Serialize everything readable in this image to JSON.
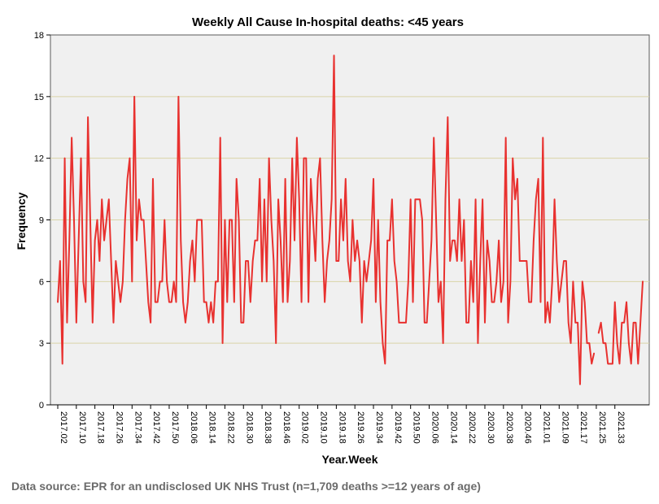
{
  "chart_data": {
    "type": "line",
    "title": "Weekly All Cause In-hospital deaths: <45 years",
    "xlabel": "Year.Week",
    "ylabel": "Frequency",
    "ylim": [
      0,
      18
    ],
    "yticks": [
      0,
      3,
      6,
      9,
      12,
      15,
      18
    ],
    "grid": true,
    "legend": "none",
    "colors": {
      "line": "#e8312f",
      "plot_background": "#f0f0f0",
      "gridline": "#d9d4a8"
    },
    "xtick_labels": [
      "2017.02",
      "2017.10",
      "2017.18",
      "2017.26",
      "2017.34",
      "2017.42",
      "2017.50",
      "2018.06",
      "2018.14",
      "2018.22",
      "2018.30",
      "2018.38",
      "2018.46",
      "2019.02",
      "2019.10",
      "2019.18",
      "2019.26",
      "2019.34",
      "2019.42",
      "2019.50",
      "2020.06",
      "2020.14",
      "2020.22",
      "2020.30",
      "2020.38",
      "2020.46",
      "2021.01",
      "2021.09",
      "2021.17",
      "2021.25",
      "2021.33"
    ],
    "series": [
      {
        "values": [
          5,
          7,
          2,
          12,
          4,
          8,
          13,
          9,
          4,
          8,
          12,
          6,
          5,
          14,
          9,
          4,
          8,
          9,
          7,
          10,
          8,
          9,
          10,
          7,
          4,
          7,
          6,
          5,
          6,
          9,
          11,
          12,
          6,
          15,
          8,
          10,
          9,
          9,
          7,
          5,
          4,
          11,
          5,
          5,
          6,
          6,
          9,
          6,
          5,
          5,
          6,
          5,
          15,
          8,
          5,
          4,
          5,
          7,
          8,
          6,
          9,
          9,
          9,
          5,
          5,
          4,
          5,
          4,
          6,
          6,
          13,
          3,
          9,
          5,
          9,
          9,
          5,
          11,
          9,
          4,
          4,
          7,
          7,
          5,
          7,
          8,
          8,
          11,
          6,
          10,
          6,
          12,
          9,
          7,
          3,
          10,
          8,
          5,
          11,
          5,
          7,
          12,
          8,
          13,
          10,
          5,
          12,
          12,
          5,
          11,
          9,
          7,
          11,
          12,
          8,
          5,
          7,
          8,
          10,
          17,
          7,
          7,
          10,
          8,
          11,
          7,
          6,
          9,
          7,
          8,
          7,
          4,
          7,
          6,
          7,
          8,
          11,
          5,
          9,
          5,
          3,
          2,
          8,
          8,
          10,
          7,
          6,
          4,
          4,
          4,
          4,
          6,
          10,
          5,
          10,
          10,
          10,
          9,
          4,
          4,
          6,
          8,
          13,
          9,
          5,
          6,
          3,
          10,
          14,
          7,
          8,
          8,
          7,
          10,
          7,
          9,
          4,
          4,
          7,
          5,
          10,
          3,
          7,
          10,
          4,
          8,
          7,
          5,
          5,
          6,
          8,
          5,
          6,
          13,
          4,
          6,
          12,
          10,
          11,
          7,
          7,
          7,
          7,
          5,
          5,
          8,
          10,
          11,
          5,
          13,
          4,
          5,
          4,
          6,
          10,
          7,
          5,
          6,
          7,
          7,
          4,
          3,
          6,
          4,
          4,
          1,
          6,
          5,
          3,
          3,
          2,
          2.5,
          null,
          3.5,
          4,
          3,
          3,
          2,
          2,
          2,
          5,
          3,
          2,
          4,
          4,
          5,
          3,
          2,
          4,
          4,
          2,
          4,
          6
        ]
      }
    ]
  },
  "footer": {
    "source": "Data source: EPR for an undisclosed UK NHS Trust (n=1,709 deaths >=12 years of age)"
  }
}
